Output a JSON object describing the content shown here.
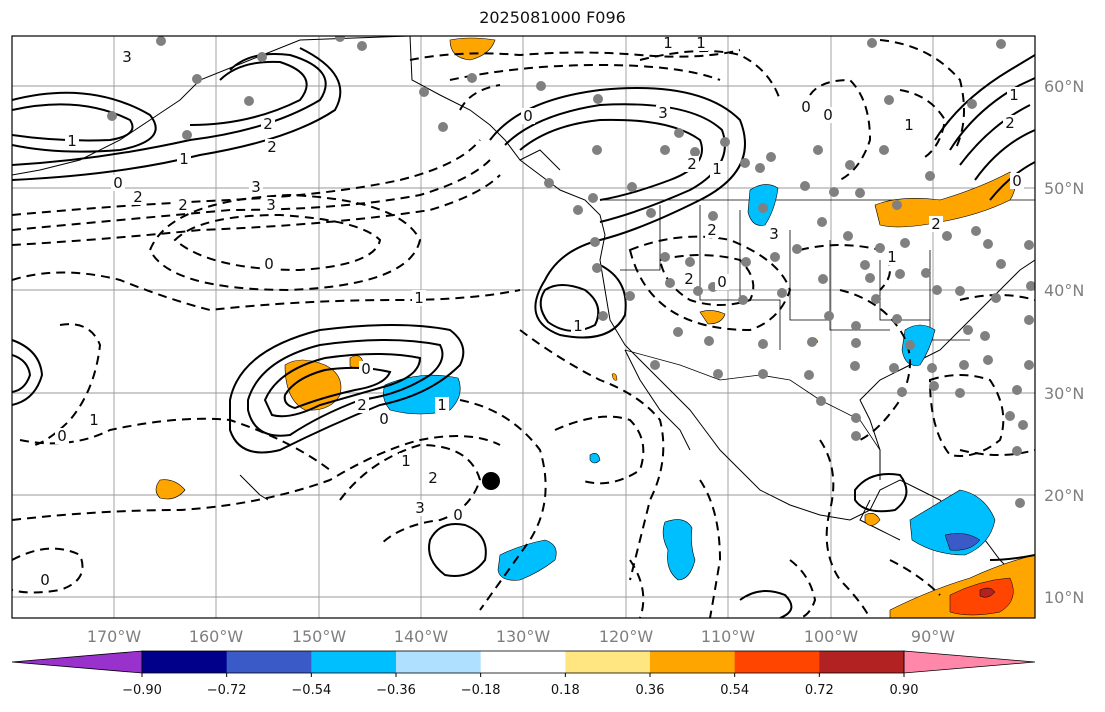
{
  "map": {
    "title": "2025081000 F096",
    "lat_labels": [
      "60°N",
      "50°N",
      "40°N",
      "30°N",
      "20°N",
      "10°N"
    ],
    "lon_labels": [
      "170°W",
      "160°W",
      "150°W",
      "140°W",
      "130°W",
      "120°W",
      "110°W",
      "100°W",
      "90°W"
    ],
    "contour_labels": [
      "3",
      "1",
      "1",
      "0",
      "2",
      "3",
      "0",
      "2",
      "2",
      "0",
      "1",
      "1",
      "2",
      "3",
      "1",
      "1",
      "3",
      "2",
      "1",
      "2",
      "3",
      "0",
      "2",
      "0",
      "0",
      "1",
      "2",
      "1",
      "1",
      "2",
      "0",
      "0",
      "2",
      "1",
      "0",
      "3",
      "0",
      "1",
      "2",
      "1",
      "0",
      "0"
    ]
  },
  "colorbar": {
    "tick_labels": [
      "−0.90",
      "−0.72",
      "−0.54",
      "−0.36",
      "−0.18",
      "0.18",
      "0.36",
      "0.54",
      "0.72",
      "0.90"
    ],
    "colors": [
      "#9932cc",
      "#00008b",
      "#3a5bc7",
      "#00bfff",
      "#b0e0ff",
      "#ffffff",
      "#ffe680",
      "#ffa500",
      "#ff4500",
      "#b22222",
      "#ff88aa"
    ],
    "extend": "both"
  }
}
